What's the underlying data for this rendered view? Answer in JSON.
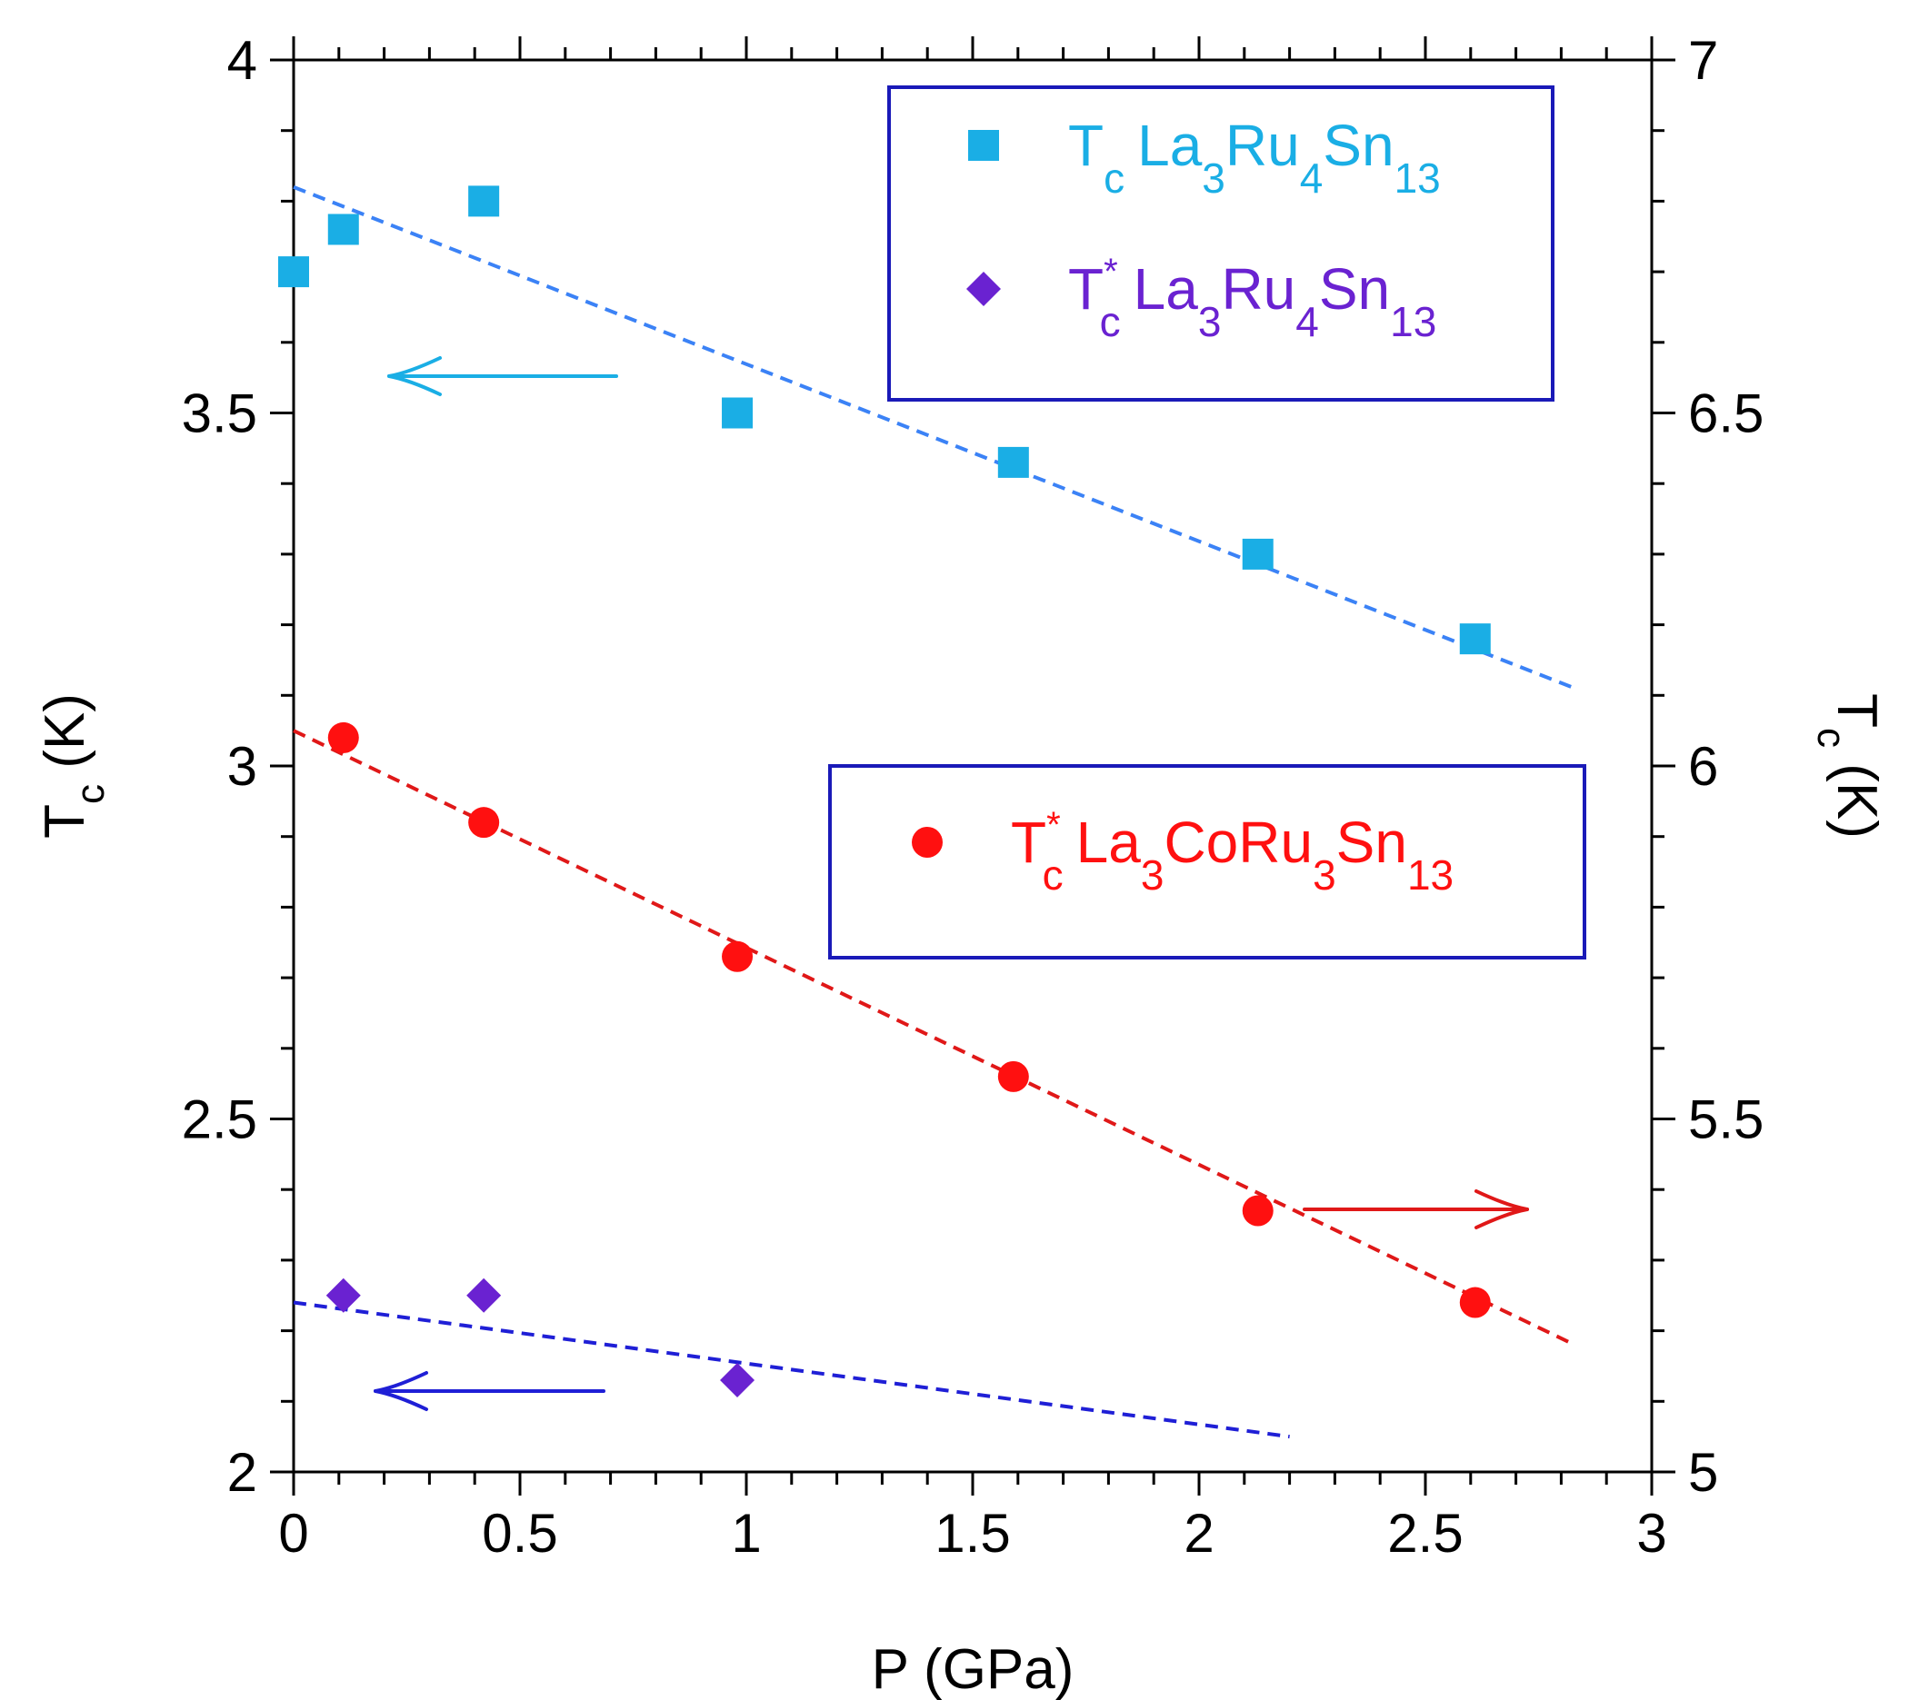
{
  "chart_data": {
    "type": "scatter",
    "xlabel": "P  (GPa)",
    "ylabel": {
      "main": "T",
      "sub": "c",
      "unit": " (K)"
    },
    "y2label": {
      "main": "T",
      "sub": "c",
      "unit": " (K)"
    },
    "xlim": [
      0,
      3
    ],
    "ylim": [
      2,
      4
    ],
    "y2lim": [
      5,
      7
    ],
    "x_ticks": [
      "0",
      "0.5",
      "1",
      "1.5",
      "2",
      "2.5",
      "3"
    ],
    "x_tick_values": [
      0,
      0.5,
      1,
      1.5,
      2,
      2.5,
      3
    ],
    "y_ticks": [
      "2",
      "2.5",
      "3",
      "3.5",
      "4"
    ],
    "y_tick_values": [
      2,
      2.5,
      3,
      3.5,
      4
    ],
    "y2_ticks": [
      "5",
      "5.5",
      "6",
      "6.5",
      "7"
    ],
    "y2_tick_values": [
      5,
      5.5,
      6,
      6.5,
      7
    ],
    "series": [
      {
        "name": "Tc La3Ru4Sn13",
        "axis": "left",
        "marker": "square",
        "color": "#1aaee5",
        "x": [
          0.0,
          0.11,
          0.42,
          0.98,
          1.59,
          2.13,
          2.61
        ],
        "y": [
          3.7,
          3.76,
          3.8,
          3.5,
          3.43,
          3.3,
          3.18
        ],
        "fit": {
          "x": [
            0.0,
            2.83
          ],
          "y": [
            3.82,
            3.11
          ],
          "color": "#3b82f6"
        }
      },
      {
        "name": "T*c La3Ru4Sn13",
        "axis": "left",
        "marker": "diamond",
        "color": "#6a22d1",
        "x": [
          0.11,
          0.42,
          0.98
        ],
        "y": [
          2.25,
          2.25,
          2.13
        ],
        "fit": {
          "x": [
            0.0,
            2.2
          ],
          "y": [
            2.24,
            2.05
          ],
          "color": "#1f1fd6"
        }
      },
      {
        "name": "T*c La3CoRu3Sn13",
        "axis": "right",
        "marker": "circle",
        "color": "#ff1010",
        "x": [
          0.11,
          0.42,
          0.98,
          1.59,
          2.13,
          2.61
        ],
        "y": [
          6.04,
          5.92,
          5.73,
          5.56,
          5.37,
          5.24
        ],
        "fit": {
          "x": [
            0.0,
            2.83
          ],
          "y": [
            6.05,
            5.18
          ],
          "color": "#e01818"
        }
      }
    ],
    "legend_boxes": [
      {
        "entries": [
          {
            "marker": "square",
            "color": "#1aaee5",
            "symbol": "T",
            "sup": "",
            "sub": "c",
            "formula": [
              [
                "La",
                "3"
              ],
              [
                "Ru",
                "4"
              ],
              [
                "Sn",
                "13"
              ]
            ]
          },
          {
            "marker": "diamond",
            "color": "#6a22d1",
            "symbol": "T",
            "sup": "*",
            "sub": "c",
            "formula": [
              [
                "La",
                "3"
              ],
              [
                "Ru",
                "4"
              ],
              [
                "Sn",
                "13"
              ]
            ]
          }
        ]
      },
      {
        "entries": [
          {
            "marker": "circle",
            "color": "#ff1010",
            "symbol": "T",
            "sup": "*",
            "sub": "c",
            "formula": [
              [
                "La",
                "3"
              ],
              [
                "CoRu",
                "3"
              ],
              [
                "Sn",
                "13"
              ]
            ]
          }
        ]
      }
    ],
    "annotations": [
      {
        "type": "arrow",
        "direction": "left",
        "points_to_axis": "left",
        "color": "#1aaee5"
      },
      {
        "type": "arrow",
        "direction": "right",
        "points_to_axis": "right",
        "color": "#e01818"
      },
      {
        "type": "arrow",
        "direction": "left",
        "points_to_axis": "left",
        "color": "#1f1fd6"
      }
    ],
    "frame_color": "#000000",
    "legend_border_color": "#1a1ab8"
  }
}
